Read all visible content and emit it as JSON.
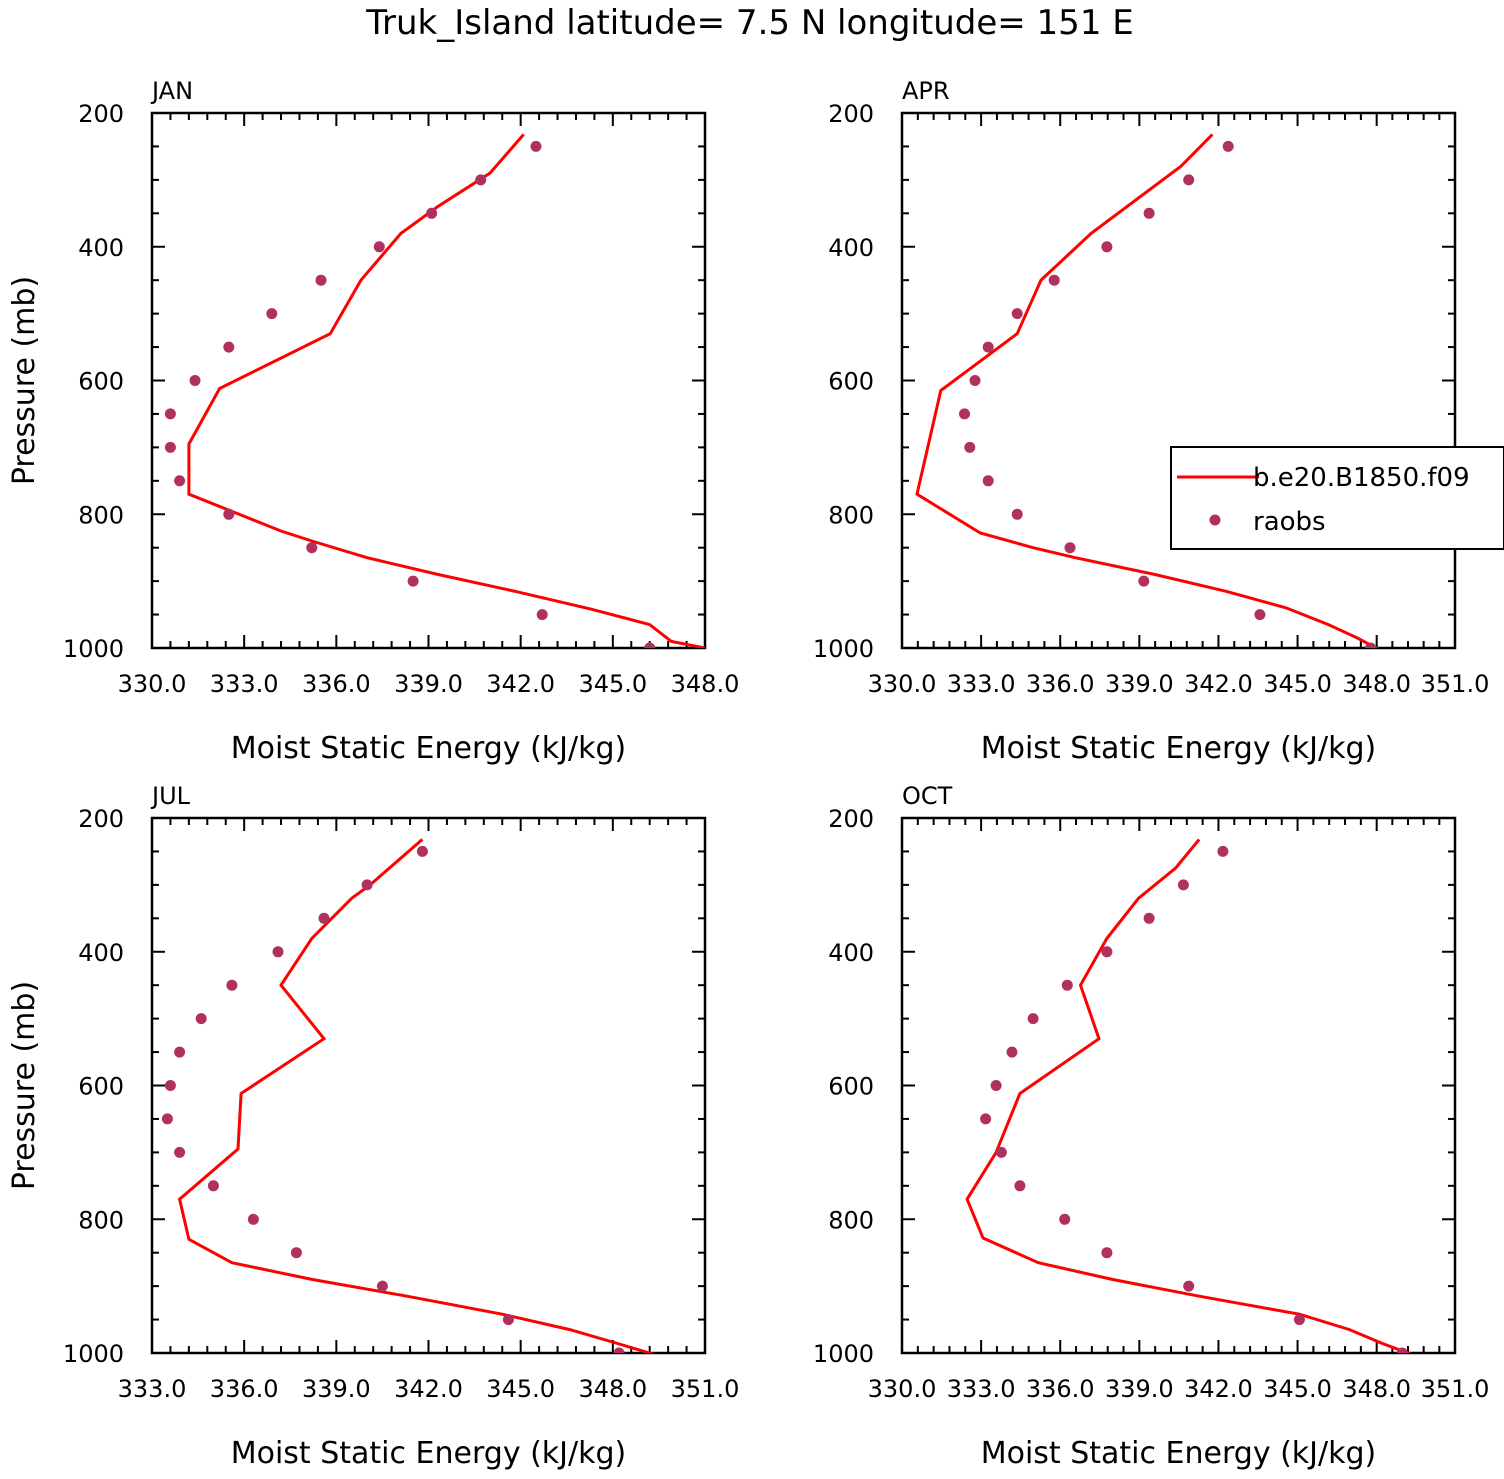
{
  "title": "Truk_Island  latitude= 7.5 N longitude= 151 E",
  "colors": {
    "model": "#ff0000",
    "obs": "#b03060",
    "axis": "#000000"
  },
  "legend": {
    "entries": [
      "b.e20.B1850.f09",
      "raobs"
    ],
    "marker_types": [
      "line",
      "dot"
    ]
  },
  "chart_data": [
    {
      "type": "line",
      "panel": "JAN",
      "xlabel": "Moist Static Energy (kJ/kg)",
      "ylabel": "Pressure (mb)",
      "xlim": [
        330.0,
        348.0
      ],
      "ylim": [
        1000,
        200
      ],
      "xticks": [
        330.0,
        333.0,
        336.0,
        339.0,
        342.0,
        345.0,
        348.0
      ],
      "xtick_labels": [
        "330.0",
        "333.0",
        "336.0",
        "339.0",
        "342.0",
        "345.0",
        "348.0"
      ],
      "yticks": [
        200,
        400,
        600,
        800,
        1000
      ],
      "ytick_labels": [
        "200",
        "400",
        "600",
        "800",
        "1000"
      ],
      "series": [
        {
          "name": "b.e20.B1850.f09",
          "kind": "line",
          "x": [
            348.0,
            346.9,
            346.2,
            344.3,
            341.8,
            339.3,
            337.0,
            335.2,
            334.2,
            331.2,
            331.2,
            332.2,
            335.8,
            336.8,
            338.1,
            339.3,
            341.0,
            342.1
          ],
          "y": [
            1000,
            990,
            965,
            942,
            915,
            890,
            865,
            840,
            825,
            770,
            695,
            612,
            530,
            450,
            380,
            340,
            290,
            232
          ]
        },
        {
          "name": "raobs",
          "kind": "dot",
          "x": [
            346.2,
            342.7,
            338.5,
            335.2,
            332.5,
            330.9,
            330.6,
            330.6,
            331.4,
            332.5,
            333.9,
            335.5,
            337.4,
            339.1,
            340.7,
            342.5
          ],
          "y": [
            1000,
            950,
            900,
            850,
            800,
            750,
            700,
            650,
            600,
            550,
            500,
            450,
            400,
            350,
            300,
            250
          ]
        }
      ]
    },
    {
      "type": "line",
      "panel": "APR",
      "xlabel": "Moist Static Energy (kJ/kg)",
      "ylabel": "",
      "xlim": [
        330.03,
        351.0
      ],
      "ylim": [
        1000,
        200
      ],
      "xticks": [
        330.03,
        333.03,
        336.03,
        339.03,
        342.03,
        345.03,
        348.03,
        351.0
      ],
      "xtick_labels": [
        "330.0",
        "333.0",
        "336.0",
        "339.0",
        "342.0",
        "345.0",
        "348.0",
        "351.0"
      ],
      "yticks": [
        200,
        400,
        600,
        800,
        1000
      ],
      "ytick_labels": [
        "200",
        "400",
        "600",
        "800",
        "1000"
      ],
      "series": [
        {
          "name": "b.e20.B1850.f09",
          "kind": "line",
          "x": [
            348.1,
            347.3,
            346.2,
            344.6,
            342.3,
            339.6,
            336.6,
            335.0,
            333.0,
            330.6,
            331.5,
            334.4,
            335.3,
            337.2,
            340.6,
            341.8
          ],
          "y": [
            1002,
            985,
            965,
            940,
            915,
            890,
            865,
            850,
            828,
            770,
            615,
            530,
            450,
            380,
            280,
            232
          ]
        },
        {
          "name": "raobs",
          "kind": "dot",
          "x": [
            347.8,
            343.6,
            339.2,
            336.4,
            334.4,
            333.3,
            332.6,
            332.4,
            332.8,
            333.3,
            334.4,
            335.8,
            337.8,
            339.4,
            340.9,
            342.4
          ],
          "y": [
            1000,
            950,
            900,
            850,
            800,
            750,
            700,
            650,
            600,
            550,
            500,
            450,
            400,
            350,
            300,
            250
          ]
        }
      ]
    },
    {
      "type": "line",
      "panel": "JUL",
      "xlabel": "Moist Static Energy (kJ/kg)",
      "ylabel": "Pressure (mb)",
      "xlim": [
        333.0,
        351.0
      ],
      "ylim": [
        1000,
        200
      ],
      "xticks": [
        333.0,
        336.0,
        339.0,
        342.0,
        345.0,
        348.0,
        351.0
      ],
      "xtick_labels": [
        "333.0",
        "336.0",
        "339.0",
        "342.0",
        "345.0",
        "348.0",
        "351.0"
      ],
      "yticks": [
        200,
        400,
        600,
        800,
        1000
      ],
      "ytick_labels": [
        "200",
        "400",
        "600",
        "800",
        "1000"
      ],
      "series": [
        {
          "name": "b.e20.B1850.f09",
          "kind": "line",
          "x": [
            349.4,
            348.1,
            346.6,
            344.4,
            341.3,
            338.2,
            335.6,
            334.2,
            333.9,
            335.8,
            335.9,
            338.6,
            337.2,
            338.2,
            339.5,
            340.1,
            341.8
          ],
          "y": [
            1003,
            985,
            965,
            942,
            915,
            890,
            865,
            830,
            770,
            695,
            612,
            530,
            450,
            380,
            320,
            300,
            232
          ]
        },
        {
          "name": "raobs",
          "kind": "dot",
          "x": [
            348.2,
            344.6,
            340.5,
            337.7,
            336.3,
            335.0,
            333.9,
            333.5,
            333.6,
            333.9,
            334.6,
            335.6,
            337.1,
            338.6,
            340.0,
            341.8
          ],
          "y": [
            1000,
            950,
            900,
            850,
            800,
            750,
            700,
            650,
            600,
            550,
            500,
            450,
            400,
            350,
            300,
            250
          ]
        }
      ]
    },
    {
      "type": "line",
      "panel": "OCT",
      "xlabel": "Moist Static Energy (kJ/kg)",
      "ylabel": "",
      "xlim": [
        330.03,
        351.0
      ],
      "ylim": [
        1000,
        200
      ],
      "xticks": [
        330.03,
        333.03,
        336.03,
        339.03,
        342.03,
        345.03,
        348.03,
        351.0
      ],
      "xtick_labels": [
        "330.0",
        "333.0",
        "336.0",
        "339.0",
        "342.0",
        "345.0",
        "348.0",
        "351.0"
      ],
      "yticks": [
        200,
        400,
        600,
        800,
        1000
      ],
      "ytick_labels": [
        "200",
        "400",
        "600",
        "800",
        "1000"
      ],
      "series": [
        {
          "name": "b.e20.B1850.f09",
          "kind": "line",
          "x": [
            349.4,
            348.2,
            347.0,
            345.1,
            341.3,
            338.0,
            335.2,
            333.1,
            332.5,
            333.6,
            334.5,
            337.5,
            336.8,
            337.8,
            339.0,
            340.4,
            341.3
          ],
          "y": [
            1003,
            985,
            965,
            942,
            915,
            890,
            865,
            828,
            770,
            700,
            612,
            530,
            450,
            380,
            320,
            275,
            232
          ]
        },
        {
          "name": "raobs",
          "kind": "dot",
          "x": [
            349.0,
            345.1,
            340.9,
            337.8,
            336.2,
            334.5,
            333.8,
            333.2,
            333.6,
            334.2,
            335.0,
            336.3,
            337.8,
            339.4,
            340.7,
            342.2
          ],
          "y": [
            1000,
            950,
            900,
            850,
            800,
            750,
            700,
            650,
            600,
            550,
            500,
            450,
            400,
            350,
            300,
            250
          ]
        }
      ]
    }
  ]
}
